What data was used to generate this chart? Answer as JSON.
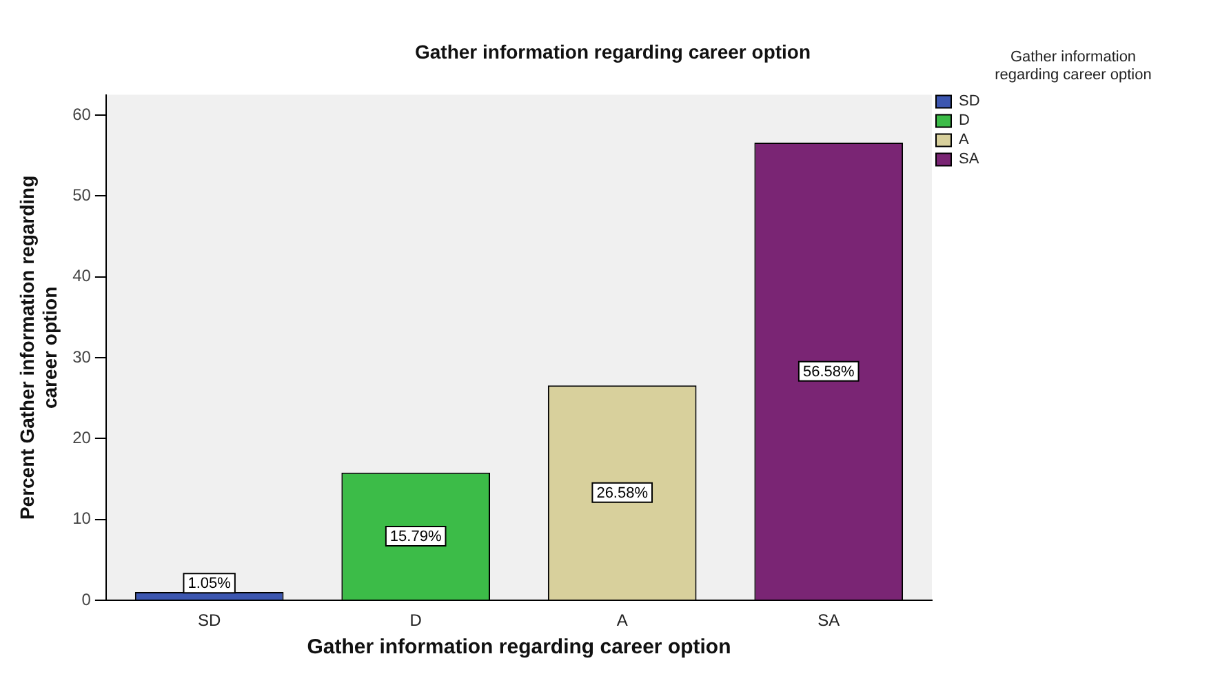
{
  "chart_data": {
    "type": "bar",
    "title": "Gather information regarding career option",
    "xlabel": "Gather information regarding career option",
    "ylabel": "Percent Gather information regarding career option",
    "legend_title": "Gather information regarding career option",
    "categories": [
      "SD",
      "D",
      "A",
      "SA"
    ],
    "series": [
      {
        "name": "SD",
        "color": "#3c56b0",
        "values": [
          1.05,
          null,
          null,
          null
        ],
        "value_labels": [
          "1.05%",
          null,
          null,
          null
        ]
      },
      {
        "name": "D",
        "color": "#3cbc48",
        "values": [
          null,
          15.79,
          null,
          null
        ],
        "value_labels": [
          null,
          "15.79%",
          null,
          null
        ]
      },
      {
        "name": "A",
        "color": "#d8d09c",
        "values": [
          null,
          null,
          26.58,
          null
        ],
        "value_labels": [
          null,
          null,
          "26.58%",
          null
        ]
      },
      {
        "name": "SA",
        "color": "#7a2574",
        "values": [
          null,
          null,
          null,
          56.58
        ],
        "value_labels": [
          null,
          null,
          null,
          "56.58%"
        ]
      }
    ],
    "ylim": [
      0,
      62.5
    ],
    "yticks": [
      0,
      10,
      20,
      30,
      40,
      50,
      60
    ],
    "grid": false,
    "legend": "top right"
  }
}
